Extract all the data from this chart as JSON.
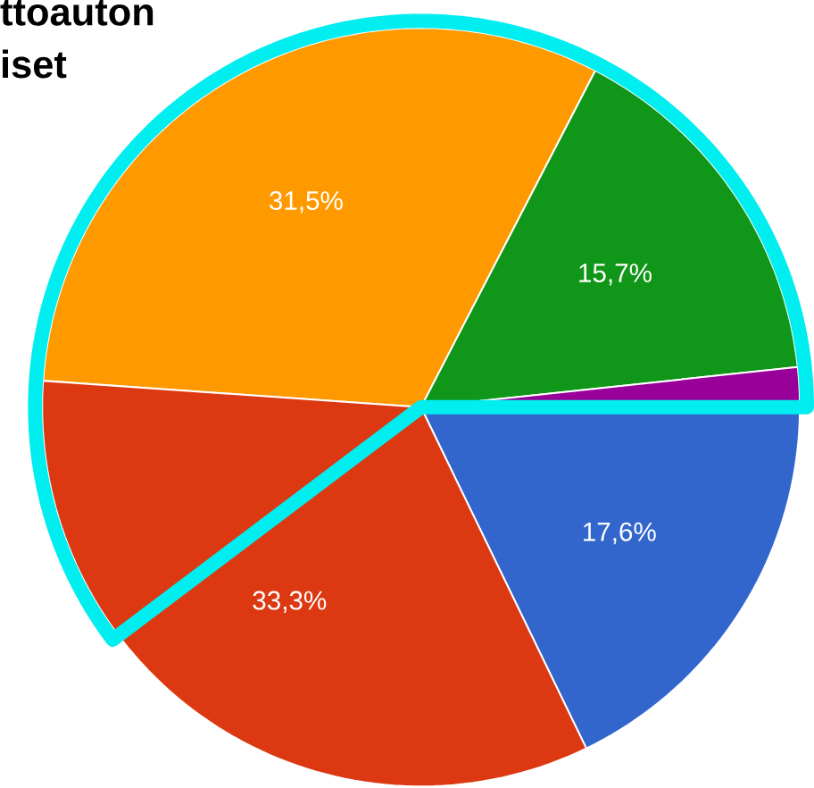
{
  "chart_data": {
    "type": "pie",
    "title": "ttoauton",
    "subtitle": "iset",
    "categories": [
      null,
      null,
      null,
      null,
      null
    ],
    "values": [
      31.5,
      15.7,
      1.9,
      17.6,
      33.3
    ],
    "colors": [
      "#ff9900",
      "#109618",
      "#990099",
      "#3366cc",
      "#dc3912"
    ],
    "value_labels": [
      "31,5%",
      "15,7%",
      null,
      "17,6%",
      "33,3%"
    ]
  }
}
